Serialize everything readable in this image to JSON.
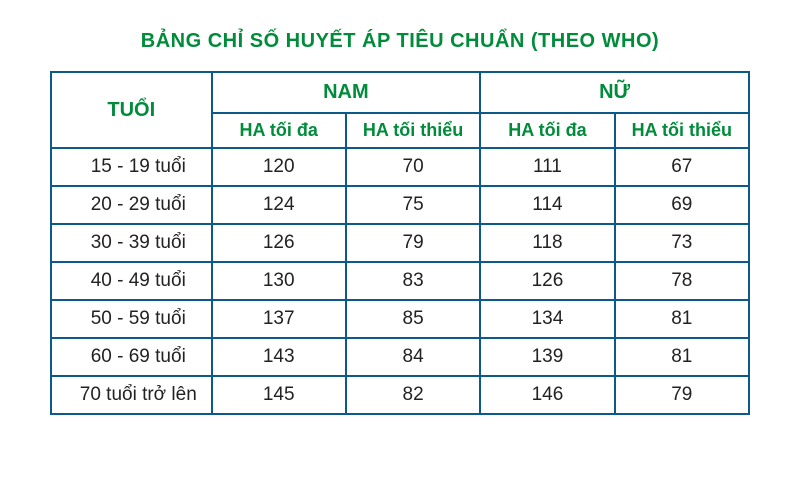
{
  "title": "BẢNG CHỈ SỐ HUYẾT ÁP TIÊU CHUẨN (THEO WHO)",
  "headers": {
    "age": "TUỔI",
    "male": "NAM",
    "female": "NỮ",
    "max": "HA tối đa",
    "min": "HA tối thiểu"
  },
  "rows": [
    {
      "age": "15 - 19 tuổi",
      "m_max": "120",
      "m_min": "70",
      "f_max": "111",
      "f_min": "67"
    },
    {
      "age": "20 - 29 tuổi",
      "m_max": "124",
      "m_min": "75",
      "f_max": "114",
      "f_min": "69"
    },
    {
      "age": "30 - 39 tuổi",
      "m_max": "126",
      "m_min": "79",
      "f_max": "118",
      "f_min": "73"
    },
    {
      "age": "40 - 49 tuổi",
      "m_max": "130",
      "m_min": "83",
      "f_max": "126",
      "f_min": "78"
    },
    {
      "age": "50 - 59 tuổi",
      "m_max": "137",
      "m_min": "85",
      "f_max": "134",
      "f_min": "81"
    },
    {
      "age": "60 - 69 tuổi",
      "m_max": "143",
      "m_min": "84",
      "f_max": "139",
      "f_min": "81"
    },
    {
      "age": "70 tuổi trở lên",
      "m_max": "145",
      "m_min": "82",
      "f_max": "146",
      "f_min": "79"
    }
  ],
  "styling": {
    "title_color": "#008c3a",
    "border_color": "#0b5a8a",
    "header_color": "#008c3a",
    "body_text_color": "#222222",
    "background_color": "#ffffff",
    "title_fontsize": 20,
    "header_fontsize": 20,
    "subheader_fontsize": 18,
    "cell_fontsize": 19,
    "border_width": 2
  }
}
